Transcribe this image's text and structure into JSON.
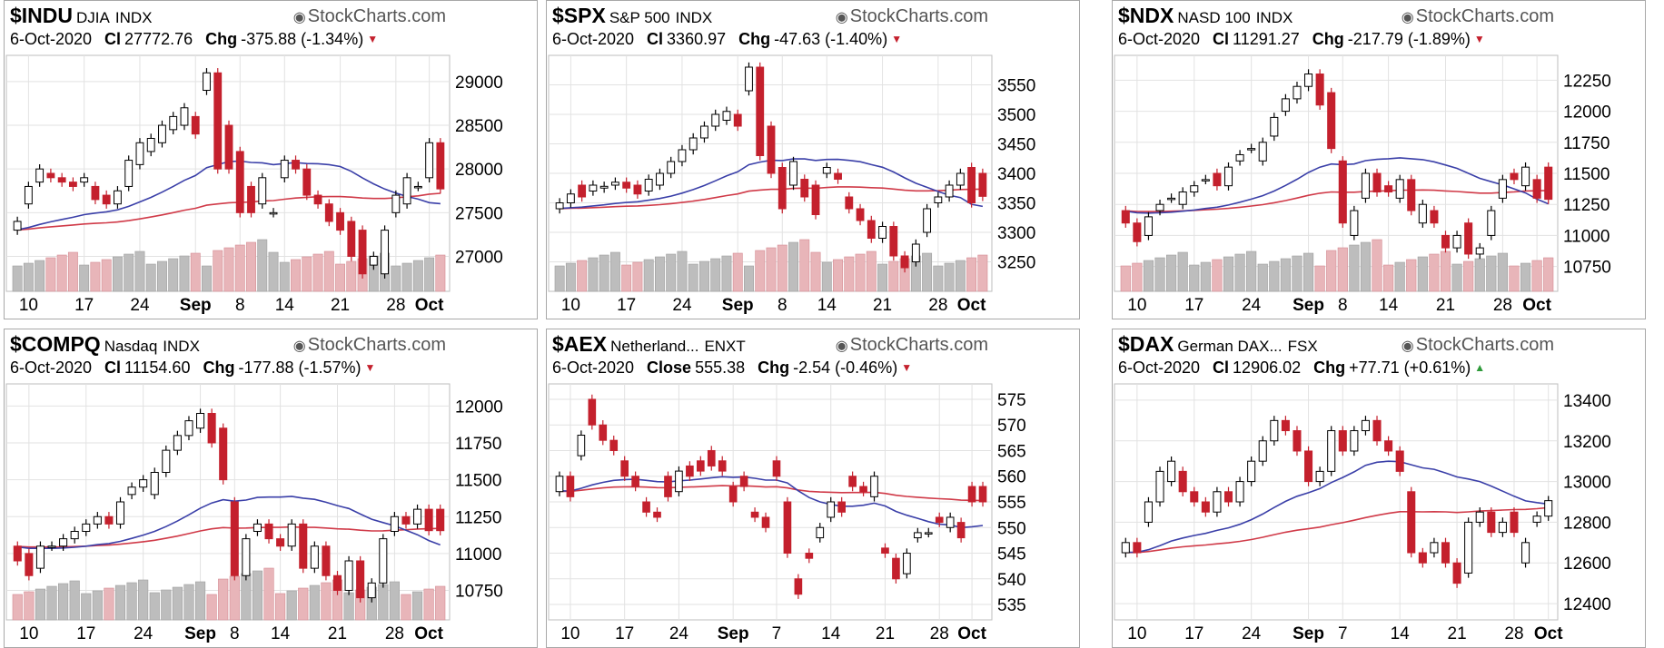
{
  "brand": "StockCharts.com",
  "chart_data": [
    {
      "type": "candlestick",
      "symbol": "$INDU",
      "name": "DJIA",
      "exchange": "INDX",
      "date": "6-Oct-2020",
      "close_label": "Cl",
      "close": "27772.76",
      "change": "-375.88 (-1.34%)",
      "direction": "down",
      "ylim": [
        26600,
        29300
      ],
      "yticks": [
        "29000",
        "28500",
        "28000",
        "27500",
        "27000"
      ],
      "xticks": [
        {
          "i": 1,
          "l": "10"
        },
        {
          "i": 6,
          "l": "17"
        },
        {
          "i": 11,
          "l": "24"
        },
        {
          "i": 16,
          "l": "Sep",
          "b": true
        },
        {
          "i": 20,
          "l": "8"
        },
        {
          "i": 24,
          "l": "14"
        },
        {
          "i": 29,
          "l": "21"
        },
        {
          "i": 34,
          "l": "28"
        },
        {
          "i": 37,
          "l": "Oct",
          "b": true
        }
      ],
      "opens": [
        27300,
        27600,
        27850,
        27950,
        27900,
        27850,
        27850,
        27800,
        27700,
        27600,
        27800,
        28050,
        28200,
        28300,
        28450,
        28500,
        28600,
        28900,
        29100,
        28500,
        28200,
        27800,
        27600,
        27500,
        27900,
        28100,
        28000,
        27700,
        27600,
        27500,
        27400,
        27300,
        26900,
        26800,
        27500,
        27600,
        27800,
        27900,
        28300
      ],
      "closes": [
        27400,
        27800,
        28000,
        27900,
        27850,
        27800,
        27900,
        27650,
        27600,
        27750,
        28100,
        28300,
        28350,
        28500,
        28600,
        28700,
        28400,
        29100,
        28000,
        28000,
        27500,
        27500,
        27900,
        27500,
        28100,
        28000,
        27700,
        27600,
        27400,
        27300,
        27000,
        26800,
        27000,
        27300,
        27700,
        27900,
        27800,
        28300,
        27772
      ]
    },
    {
      "type": "candlestick",
      "symbol": "$SPX",
      "name": "S&P 500",
      "exchange": "INDX",
      "date": "6-Oct-2020",
      "close_label": "Cl",
      "close": "3360.97",
      "change": "-47.63 (-1.40%)",
      "direction": "down",
      "ylim": [
        3200,
        3600
      ],
      "yticks": [
        "3550",
        "3500",
        "3450",
        "3400",
        "3350",
        "3300",
        "3250"
      ],
      "xticks": [
        {
          "i": 1,
          "l": "10"
        },
        {
          "i": 6,
          "l": "17"
        },
        {
          "i": 11,
          "l": "24"
        },
        {
          "i": 16,
          "l": "Sep",
          "b": true
        },
        {
          "i": 20,
          "l": "8"
        },
        {
          "i": 24,
          "l": "14"
        },
        {
          "i": 29,
          "l": "21"
        },
        {
          "i": 34,
          "l": "28"
        },
        {
          "i": 37,
          "l": "Oct",
          "b": true
        }
      ],
      "opens": [
        3340,
        3350,
        3380,
        3370,
        3375,
        3380,
        3385,
        3380,
        3370,
        3380,
        3400,
        3420,
        3440,
        3460,
        3480,
        3490,
        3500,
        3540,
        3580,
        3480,
        3410,
        3380,
        3390,
        3380,
        3400,
        3400,
        3360,
        3340,
        3320,
        3290,
        3310,
        3260,
        3250,
        3300,
        3350,
        3360,
        3380,
        3410,
        3400
      ],
      "closes": [
        3350,
        3365,
        3360,
        3380,
        3378,
        3385,
        3375,
        3365,
        3390,
        3400,
        3420,
        3440,
        3460,
        3480,
        3500,
        3505,
        3480,
        3580,
        3430,
        3400,
        3340,
        3420,
        3360,
        3330,
        3410,
        3390,
        3340,
        3320,
        3290,
        3310,
        3260,
        3240,
        3280,
        3340,
        3360,
        3380,
        3400,
        3350,
        3361
      ]
    },
    {
      "type": "candlestick",
      "symbol": "$NDX",
      "name": "NASD 100",
      "exchange": "INDX",
      "date": "6-Oct-2020",
      "close_label": "Cl",
      "close": "11291.27",
      "change": "-217.79 (-1.89%)",
      "direction": "down",
      "ylim": [
        10550,
        12450
      ],
      "yticks": [
        "12250",
        "12000",
        "11750",
        "11500",
        "11250",
        "11000",
        "10750"
      ],
      "xticks": [
        {
          "i": 1,
          "l": "10"
        },
        {
          "i": 6,
          "l": "17"
        },
        {
          "i": 11,
          "l": "24"
        },
        {
          "i": 16,
          "l": "Sep",
          "b": true
        },
        {
          "i": 19,
          "l": "8"
        },
        {
          "i": 23,
          "l": "14"
        },
        {
          "i": 28,
          "l": "21"
        },
        {
          "i": 33,
          "l": "28"
        },
        {
          "i": 36,
          "l": "Oct",
          "b": true
        }
      ],
      "opens": [
        11200,
        11100,
        11000,
        11200,
        11300,
        11250,
        11350,
        11450,
        11500,
        11400,
        11600,
        11700,
        11600,
        11800,
        12000,
        12100,
        12200,
        12300,
        12150,
        11600,
        11000,
        11300,
        11500,
        11400,
        11300,
        11450,
        11100,
        11200,
        11000,
        10900,
        11100,
        10850,
        11000,
        11300,
        11500,
        11400,
        11450,
        11550
      ],
      "closes": [
        11100,
        10950,
        11150,
        11250,
        11300,
        11350,
        11400,
        11450,
        11400,
        11550,
        11650,
        11700,
        11750,
        11950,
        12100,
        12200,
        12300,
        12050,
        11700,
        11100,
        11200,
        11500,
        11350,
        11350,
        11450,
        11200,
        11250,
        11100,
        10900,
        11000,
        10850,
        10900,
        11200,
        11450,
        11450,
        11550,
        11300,
        11291
      ]
    },
    {
      "type": "candlestick",
      "symbol": "$COMPQ",
      "name": "Nasdaq",
      "exchange": "INDX",
      "date": "6-Oct-2020",
      "close_label": "Cl",
      "close": "11154.60",
      "change": "-177.88 (-1.57%)",
      "direction": "down",
      "ylim": [
        10550,
        12150
      ],
      "yticks": [
        "12000",
        "11750",
        "11500",
        "11250",
        "11000",
        "10750"
      ],
      "xticks": [
        {
          "i": 1,
          "l": "10"
        },
        {
          "i": 6,
          "l": "17"
        },
        {
          "i": 11,
          "l": "24"
        },
        {
          "i": 16,
          "l": "Sep",
          "b": true
        },
        {
          "i": 19,
          "l": "8"
        },
        {
          "i": 23,
          "l": "14"
        },
        {
          "i": 28,
          "l": "21"
        },
        {
          "i": 33,
          "l": "28"
        },
        {
          "i": 36,
          "l": "Oct",
          "b": true
        }
      ],
      "opens": [
        11050,
        11000,
        10900,
        11050,
        11050,
        11100,
        11150,
        11200,
        11250,
        11200,
        11400,
        11450,
        11400,
        11550,
        11700,
        11800,
        11850,
        11950,
        11850,
        11350,
        10850,
        11150,
        11200,
        11100,
        11050,
        11200,
        10900,
        11050,
        10850,
        10750,
        10950,
        10700,
        10800,
        11150,
        11250,
        11200,
        11300,
        11300
      ],
      "closes": [
        10950,
        10850,
        11050,
        11050,
        11100,
        11150,
        11200,
        11250,
        11200,
        11350,
        11450,
        11500,
        11550,
        11700,
        11800,
        11900,
        11950,
        11750,
        11500,
        10850,
        11100,
        11200,
        11100,
        11050,
        11200,
        10900,
        11050,
        10850,
        10750,
        10950,
        10700,
        10800,
        11100,
        11250,
        11200,
        11300,
        11155,
        11155
      ]
    },
    {
      "type": "candlestick",
      "symbol": "$AEX",
      "name": "Netherland...",
      "exchange": "ENXT",
      "date": "6-Oct-2020",
      "close_label": "Close",
      "close": "555.38",
      "change": "-2.54 (-0.46%)",
      "direction": "down",
      "ylim": [
        532,
        578
      ],
      "yticks": [
        "575",
        "570",
        "565",
        "560",
        "555",
        "550",
        "545",
        "540",
        "535"
      ],
      "xticks": [
        {
          "i": 1,
          "l": "10"
        },
        {
          "i": 6,
          "l": "17"
        },
        {
          "i": 11,
          "l": "24"
        },
        {
          "i": 16,
          "l": "Sep",
          "b": true
        },
        {
          "i": 20,
          "l": "7"
        },
        {
          "i": 25,
          "l": "14"
        },
        {
          "i": 30,
          "l": "21"
        },
        {
          "i": 35,
          "l": "28"
        },
        {
          "i": 38,
          "l": "Oct",
          "b": true
        }
      ],
      "opens": [
        557,
        560,
        564,
        575,
        570,
        567,
        563,
        560,
        555,
        553,
        560,
        557,
        562,
        563,
        565,
        563,
        558,
        560,
        553,
        552,
        563,
        555,
        540,
        545,
        548,
        552,
        555,
        560,
        558,
        556,
        546,
        544,
        541,
        548,
        549,
        552,
        550,
        551,
        558,
        558
      ],
      "closes": [
        560,
        556,
        568,
        570,
        567,
        565,
        560,
        558,
        553,
        552,
        556,
        561,
        560,
        561,
        562,
        561,
        555,
        558,
        552,
        550,
        560,
        545,
        537,
        544,
        550,
        555,
        553,
        558,
        557,
        560,
        545,
        540,
        545,
        549,
        549,
        551,
        552,
        548,
        555,
        555
      ]
    },
    {
      "type": "candlestick",
      "symbol": "$DAX",
      "name": "German DAX...",
      "exchange": "FSX",
      "date": "6-Oct-2020",
      "close_label": "Cl",
      "close": "12906.02",
      "change": "+77.71 (+0.61%)",
      "direction": "up",
      "ylim": [
        12320,
        13480
      ],
      "yticks": [
        "13400",
        "13200",
        "13000",
        "12800",
        "12600",
        "12400"
      ],
      "xticks": [
        {
          "i": 1,
          "l": "10"
        },
        {
          "i": 6,
          "l": "17"
        },
        {
          "i": 11,
          "l": "24"
        },
        {
          "i": 16,
          "l": "Sep",
          "b": true
        },
        {
          "i": 19,
          "l": "7"
        },
        {
          "i": 24,
          "l": "14"
        },
        {
          "i": 29,
          "l": "21"
        },
        {
          "i": 34,
          "l": "28"
        },
        {
          "i": 37,
          "l": "Oct",
          "b": true
        }
      ],
      "opens": [
        12650,
        12700,
        12800,
        12900,
        13000,
        13050,
        12950,
        12900,
        12850,
        12950,
        12900,
        13000,
        13100,
        13200,
        13300,
        13250,
        13150,
        13000,
        13050,
        13250,
        13150,
        13250,
        13300,
        13200,
        13150,
        12950,
        12650,
        12650,
        12700,
        12600,
        12550,
        12800,
        12850,
        12750,
        12850,
        12600,
        12800,
        12830
      ],
      "closes": [
        12700,
        12650,
        12900,
        13050,
        13100,
        12950,
        12900,
        12850,
        12950,
        12900,
        13000,
        13100,
        13200,
        13300,
        13250,
        13150,
        13000,
        13050,
        13250,
        13150,
        13250,
        13300,
        13200,
        13150,
        13050,
        12650,
        12600,
        12700,
        12600,
        12500,
        12800,
        12850,
        12750,
        12800,
        12750,
        12700,
        12830,
        12906
      ]
    }
  ]
}
